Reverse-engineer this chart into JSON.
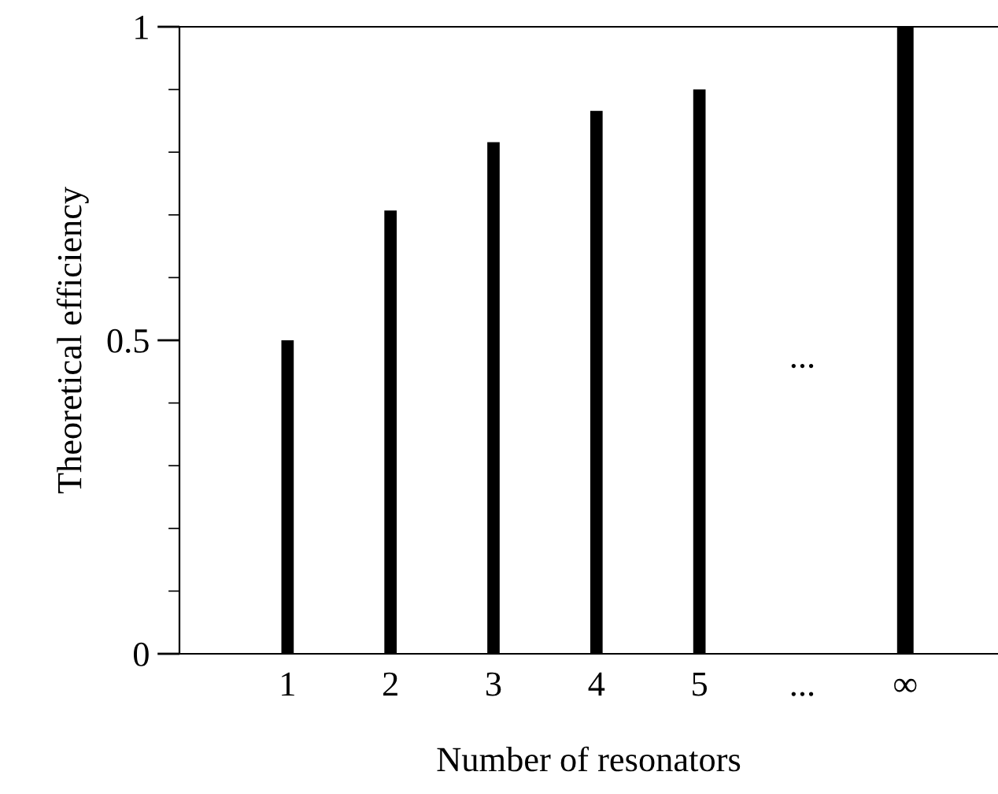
{
  "chart_data": {
    "type": "bar",
    "xlabel": "Number of resonators",
    "ylabel": "Theoretical efficiency",
    "categories": [
      "1",
      "2",
      "3",
      "4",
      "5",
      "...",
      "∞"
    ],
    "values": [
      0.5,
      0.707,
      0.816,
      0.866,
      0.9,
      null,
      1
    ],
    "color": "#000000",
    "ylim": [
      0,
      1
    ],
    "yticks": [
      0,
      0.5,
      1
    ],
    "grid": false,
    "legend": false,
    "annotations": [
      "..."
    ]
  }
}
